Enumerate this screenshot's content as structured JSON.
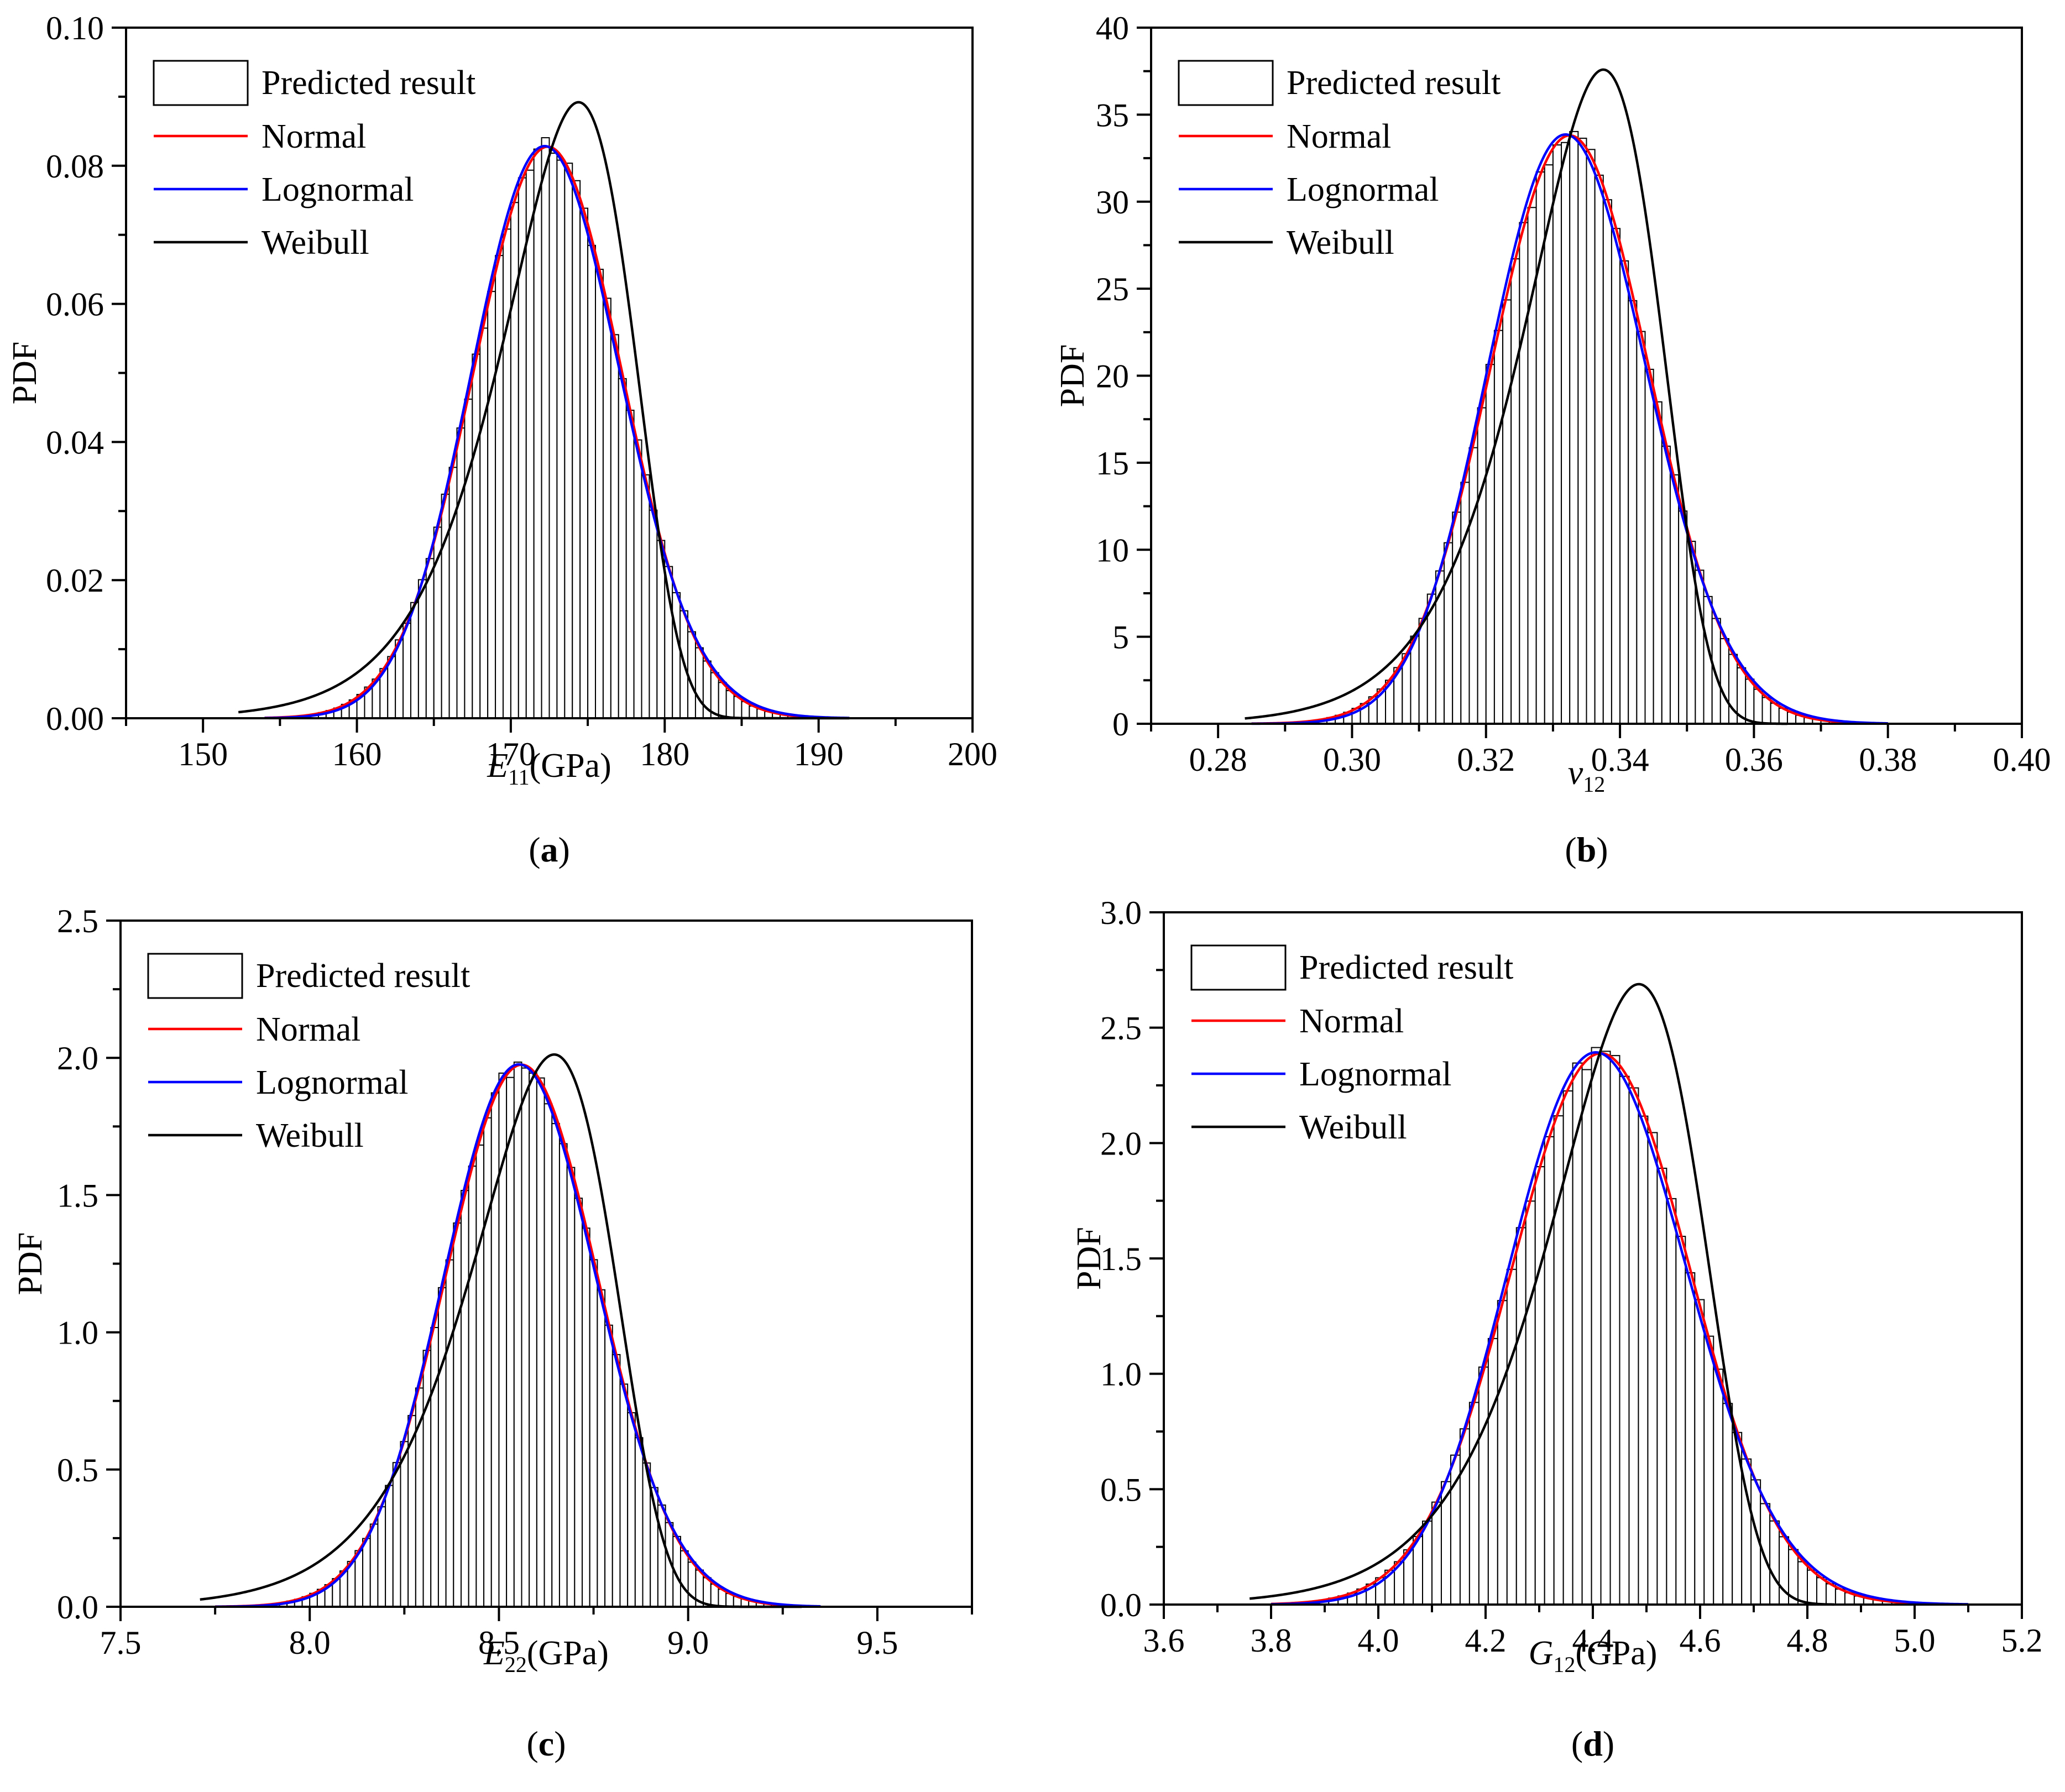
{
  "figure": {
    "panels": [
      "(a)",
      "(b)",
      "(c)",
      "(d)"
    ]
  },
  "legend": {
    "hist": "Predicted result",
    "normal": "Normal",
    "lognormal": "Lognormal",
    "weibull": "Weibull"
  },
  "colors": {
    "normal": "#ff0000",
    "lognormal": "#0000ff",
    "weibull": "#000000",
    "hist_edge": "#000000",
    "axes": "#000000"
  },
  "chart_data": [
    {
      "type": "histogram",
      "panel_label": "a",
      "ylabel": "PDF",
      "xlabel_var": "E",
      "xlabel_sub": "11",
      "xlabel_unit": "(GPa)",
      "xlim": [
        145,
        200
      ],
      "ylim": [
        0,
        0.1
      ],
      "xticks": [
        150,
        160,
        170,
        180,
        190,
        200
      ],
      "yticks": [
        0.0,
        0.02,
        0.04,
        0.06,
        0.08,
        0.1
      ],
      "xtick_labels": [
        "150",
        "160",
        "170",
        "180",
        "190",
        "200"
      ],
      "ytick_labels": [
        "0.00",
        "0.02",
        "0.04",
        "0.06",
        "0.08",
        "0.10"
      ],
      "hist_mean": 172.4,
      "hist_sd": 4.82,
      "bin_width": 0.5,
      "hist_range": [
        154,
        192
      ],
      "weibull": {
        "lambda": 174.5,
        "k": 42.3,
        "x_start": 152.3,
        "x_end": 192
      },
      "normal_range": [
        154,
        192
      ]
    },
    {
      "type": "histogram",
      "panel_label": "b",
      "ylabel": "PDF",
      "xlabel_var": "v",
      "xlabel_sub": "12",
      "xlabel_unit": "",
      "xlim": [
        0.27,
        0.4
      ],
      "ylim": [
        0,
        40
      ],
      "xticks": [
        0.28,
        0.3,
        0.32,
        0.34,
        0.36,
        0.38,
        0.4
      ],
      "yticks": [
        0,
        5,
        10,
        15,
        20,
        25,
        30,
        35,
        40
      ],
      "xtick_labels": [
        "0.28",
        "0.30",
        "0.32",
        "0.34",
        "0.36",
        "0.38",
        "0.40"
      ],
      "ytick_labels": [
        "0",
        "5",
        "10",
        "15",
        "20",
        "25",
        "30",
        "35",
        "40"
      ],
      "hist_mean": 0.3325,
      "hist_sd": 0.0118,
      "bin_width": 0.00125,
      "hist_range": [
        0.29,
        0.38
      ],
      "weibull": {
        "lambda": 0.3378,
        "k": 34.5,
        "x_start": 0.284,
        "x_end": 0.365
      },
      "normal_range": [
        0.285,
        0.38
      ]
    },
    {
      "type": "histogram",
      "panel_label": "c",
      "ylabel": "PDF",
      "xlabel_var": "E",
      "xlabel_sub": "22",
      "xlabel_unit": "(GPa)",
      "xlim": [
        7.5,
        9.75
      ],
      "ylim": [
        0,
        2.5
      ],
      "xticks": [
        7.5,
        8.0,
        8.5,
        9.0,
        9.5
      ],
      "yticks": [
        0,
        0.5,
        1.0,
        1.5,
        2.0,
        2.5
      ],
      "xtick_labels": [
        "7.5",
        "8.0",
        "8.5",
        "9.0",
        "9.5"
      ],
      "ytick_labels": [
        "0.0",
        "0.5",
        "1.0",
        "1.5",
        "2.0",
        "2.5"
      ],
      "hist_mean": 8.56,
      "hist_sd": 0.202,
      "bin_width": 0.02,
      "hist_range": [
        7.8,
        9.25
      ],
      "weibull": {
        "lambda": 8.65,
        "k": 47.3,
        "x_start": 7.71,
        "x_end": 9.3
      },
      "normal_range": [
        7.75,
        9.35
      ]
    },
    {
      "type": "histogram",
      "panel_label": "d",
      "ylabel": "PDF",
      "xlabel_var": "G",
      "xlabel_sub": "12",
      "xlabel_unit": "(GPa)",
      "xlim": [
        3.6,
        5.2
      ],
      "ylim": [
        0,
        3.0
      ],
      "xticks": [
        3.6,
        3.8,
        4.0,
        4.2,
        4.4,
        4.6,
        4.8,
        5.0,
        5.2
      ],
      "yticks": [
        0,
        0.5,
        1.0,
        1.5,
        2.0,
        2.5,
        3.0
      ],
      "xtick_labels": [
        "3.6",
        "3.8",
        "4.0",
        "4.2",
        "4.4",
        "4.6",
        "4.8",
        "5.0",
        "5.2"
      ],
      "ytick_labels": [
        "0.0",
        "0.5",
        "1.0",
        "1.5",
        "2.0",
        "2.5",
        "3.0"
      ],
      "hist_mean": 4.415,
      "hist_sd": 0.167,
      "bin_width": 0.0175,
      "hist_range": [
        3.82,
        5.1
      ],
      "weibull": {
        "lambda": 4.49,
        "k": 32.8,
        "x_start": 3.76,
        "x_end": 4.85
      },
      "normal_range": [
        3.8,
        5.1
      ]
    }
  ]
}
